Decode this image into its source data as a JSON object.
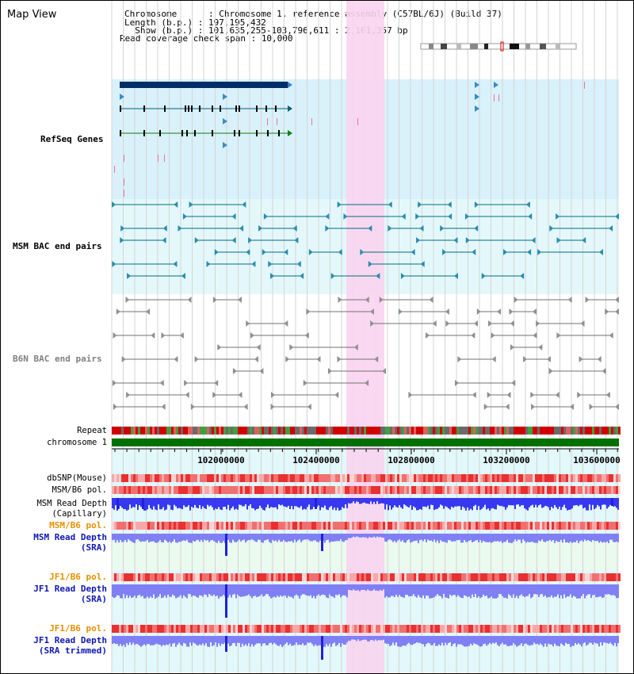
{
  "view_title": "Map View",
  "header": {
    "chromosome_label": "Chromosome      :",
    "chromosome_value": "Chromosome 1, reference assembly (C57BL/6J) (Build 37)",
    "length_label": "Length (b.p.) :",
    "length_value": "197,195,432",
    "show_label": "  Show (b.p.) :",
    "show_value": "101,635,255-103,796,611 : 2,161,357 bp",
    "span_label": "Read coverage check span :",
    "span_value": "10,000"
  },
  "tracks": {
    "refseq": "RefSeq Genes",
    "msm_bac": "MSM BAC end pairs",
    "b6n_bac": "B6N BAC end pairs",
    "repeat": "Repeat",
    "chromosome": "chromosome 1",
    "dbsnp": "dbSNP(Mouse)",
    "msm_b6_pol_1": "MSM/B6 pol.",
    "msm_read_depth_cap_1": "MSM Read Depth",
    "msm_read_depth_cap_2": "(Capillary)",
    "msm_b6_pol_2": "MSM/B6 pol.",
    "msm_read_depth_sra_1": "MSM Read Depth",
    "msm_read_depth_sra_2": "(SRA)",
    "jf1_b6_pol_1": "JF1/B6 pol.",
    "jf1_read_depth_sra_1": "JF1 Read Depth",
    "jf1_read_depth_sra_2": "(SRA)",
    "jf1_b6_pol_2": "JF1/B6 pol.",
    "jf1_read_depth_trim_1": "JF1 Read Depth",
    "jf1_read_depth_trim_2": "(SRA trimmed)"
  },
  "ruler": {
    "ticks": [
      "102000000",
      "102400000",
      "102800000",
      "103200000",
      "103600000"
    ]
  },
  "colors": {
    "refseq_bg": "#d9f1fb",
    "bac_bg": "#e4f8fb",
    "highlight": "#f9d4f0",
    "label_blue": "#1018b0",
    "label_teal": "#006080",
    "label_orange": "#e89000",
    "chromosome_green": "#007000",
    "depth_blue": "#3838f0",
    "depth_light": "#8080f4"
  }
}
